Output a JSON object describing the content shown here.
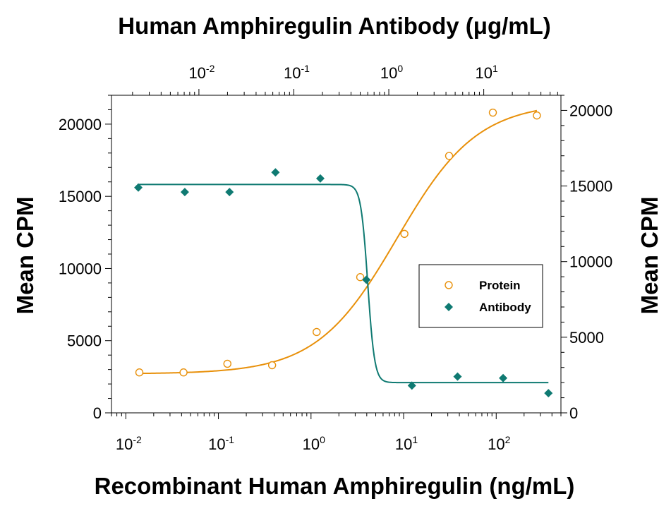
{
  "chart_data": {
    "type": "scatter",
    "top_axis_title": "Human Amphiregulin Antibody (μg/mL)",
    "xlabel": "Recombinant Human Amphiregulin (ng/mL)",
    "ylabel_left": "Mean CPM",
    "ylabel_right": "Mean CPM",
    "x_scale": "log",
    "xlim": [
      0.007,
      500
    ],
    "bottom_ticks": [
      {
        "value": 0.01,
        "base": "10",
        "exp": "-2"
      },
      {
        "value": 0.1,
        "base": "10",
        "exp": "-1"
      },
      {
        "value": 1,
        "base": "10",
        "exp": "0"
      },
      {
        "value": 10,
        "base": "10",
        "exp": "1"
      },
      {
        "value": 100,
        "base": "10",
        "exp": "2"
      }
    ],
    "top_ticks": [
      {
        "value": 0.01,
        "base": "10",
        "exp": "-2"
      },
      {
        "value": 0.1,
        "base": "10",
        "exp": "-1"
      },
      {
        "value": 1,
        "base": "10",
        "exp": "0"
      },
      {
        "value": 10,
        "base": "10",
        "exp": "1"
      }
    ],
    "top_xlim": [
      0.0012,
      65
    ],
    "ylim_left": [
      0,
      22000
    ],
    "yticks_left": [
      0,
      5000,
      10000,
      15000,
      20000
    ],
    "ylim_right": [
      0,
      21000
    ],
    "yticks_right": [
      0,
      5000,
      10000,
      15000,
      20000
    ],
    "grid": false,
    "legend_position": "center-right",
    "series": [
      {
        "name": "Protein",
        "marker": "open-circle",
        "color": "#E8900A",
        "axis": "bottom-left",
        "x": [
          0.014,
          0.042,
          0.125,
          0.38,
          1.15,
          3.4,
          10.2,
          31,
          92,
          275
        ],
        "y": [
          2800,
          2800,
          3400,
          3300,
          5600,
          9400,
          12400,
          17800,
          20800,
          20600
        ],
        "fit": {
          "bottom": 2700,
          "top": 21500,
          "ec50": 8.5,
          "hill": 1.0
        }
      },
      {
        "name": "Antibody",
        "marker": "filled-diamond",
        "color": "#0F7A72",
        "axis": "top-right",
        "x": [
          0.0023,
          0.0071,
          0.021,
          0.064,
          0.19,
          0.58,
          1.75,
          5.3,
          16,
          48
        ],
        "y": [
          14900,
          14600,
          14600,
          15900,
          15500,
          8800,
          1800,
          2400,
          2300,
          1300
        ],
        "fit": {
          "bottom": 2000,
          "top": 15100,
          "ec50": 0.6,
          "hill": 12
        }
      }
    ]
  }
}
